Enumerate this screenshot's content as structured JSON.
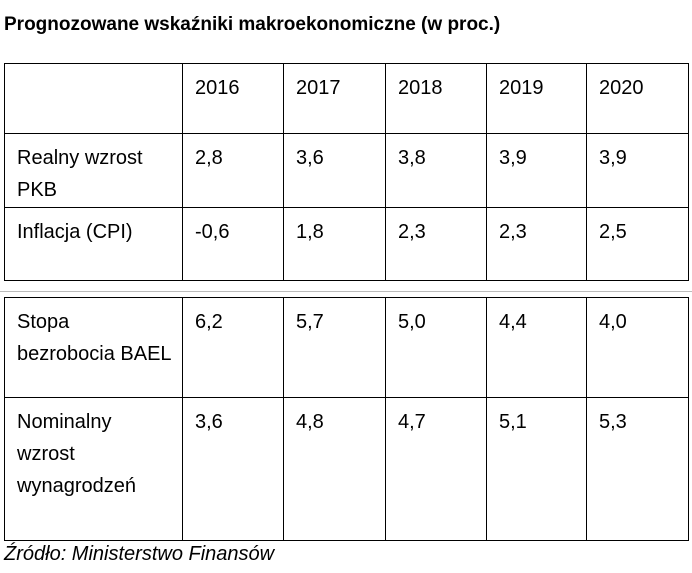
{
  "title": "Prognozowane wskaźniki makroekonomiczne (w proc.)",
  "table1": {
    "header": [
      "",
      "2016",
      "2017",
      "2018",
      "2019",
      "2020"
    ],
    "rows": [
      [
        "Realny wzrost PKB",
        "2,8",
        "3,6",
        "3,8",
        "3,9",
        "3,9"
      ],
      [
        "Inflacja (CPI)",
        "-0,6",
        "1,8",
        "2,3",
        "2,3",
        "2,5"
      ]
    ]
  },
  "table2": {
    "rows": [
      [
        "Stopa bezrobocia BAEL",
        "6,2",
        "5,7",
        "5,0",
        "4,4",
        "4,0"
      ],
      [
        "Nominalny wzrost wynagrodzeń",
        "3,6",
        "4,8",
        "4,7",
        "5,1",
        "5,3"
      ]
    ]
  },
  "source": "Źródło: Ministerstwo Finansów"
}
